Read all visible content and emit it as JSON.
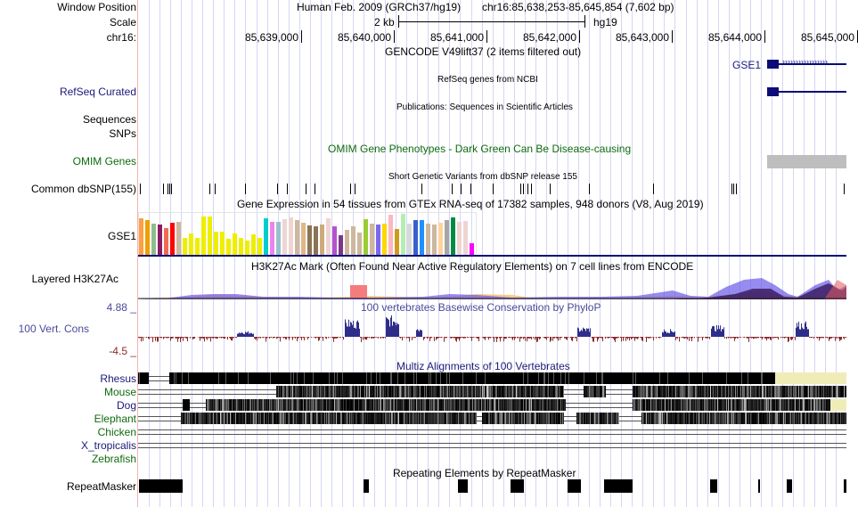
{
  "header": {
    "window_position_label": "Window Position",
    "assembly_text": "Human Feb. 2009 (GRCh37/hg19)",
    "position_text": "chr16:85,638,253-85,645,854 (7,602 bp)",
    "scale_label": "Scale",
    "scale_value": "2 kb",
    "scale_db": "hg19",
    "chrom_label": "chr16:",
    "ticks": [
      "85,639,000",
      "85,640,000",
      "85,641,000",
      "85,642,000",
      "85,643,000",
      "85,644,000",
      "85,645,000"
    ]
  },
  "tracks": {
    "gencode": {
      "title": "GENCODE V49lift37 (2 items filtered out)",
      "gene": "GSE1",
      "color": "#0c0c78"
    },
    "refseq": {
      "label": "RefSeq Curated",
      "title": "RefSeq genes from NCBI"
    },
    "publications": {
      "title": "Publications: Sequences in Scientific Articles"
    },
    "sequences": {
      "label": "Sequences"
    },
    "snps": {
      "label": "SNPs"
    },
    "omim": {
      "label": "OMIM Genes",
      "title": "OMIM Gene Phenotypes - Dark Green Can Be Disease-causing",
      "bar_color": "#bebebe"
    },
    "dbsnp": {
      "label": "Common dbSNP(155)",
      "title": "Short Genetic Variants from dbSNP release 155"
    },
    "gtex": {
      "label": "GSE1",
      "title": "Gene Expression in 54 tissues from GTEx RNA-seq of 17382 samples, 948 donors (V8, Aug 2019)",
      "bars": [
        {
          "color": "#ff9f40",
          "v": 0.88
        },
        {
          "color": "#eea000",
          "v": 0.84
        },
        {
          "color": "#8fbc8f",
          "v": 0.74
        },
        {
          "color": "#8b1c62",
          "v": 0.72
        },
        {
          "color": "#ee6a50",
          "v": 0.64
        },
        {
          "color": "#ff0000",
          "v": 0.76
        },
        {
          "color": "#cdb79e",
          "v": 0.78
        },
        {
          "color": "#eeee00",
          "v": 0.4
        },
        {
          "color": "#eeee00",
          "v": 0.52
        },
        {
          "color": "#eeee00",
          "v": 0.4
        },
        {
          "color": "#eeee00",
          "v": 0.92
        },
        {
          "color": "#eeee00",
          "v": 0.92
        },
        {
          "color": "#eeee00",
          "v": 0.56
        },
        {
          "color": "#eeee00",
          "v": 0.56
        },
        {
          "color": "#eeee00",
          "v": 0.38
        },
        {
          "color": "#eeee00",
          "v": 0.52
        },
        {
          "color": "#eeee00",
          "v": 0.4
        },
        {
          "color": "#eeee00",
          "v": 0.34
        },
        {
          "color": "#eeee00",
          "v": 0.48
        },
        {
          "color": "#eeee00",
          "v": 0.4
        },
        {
          "color": "#00cdcd",
          "v": 0.88
        },
        {
          "color": "#ee82ee",
          "v": 0.78
        },
        {
          "color": "#9ac0cd",
          "v": 0.78
        },
        {
          "color": "#eed5d2",
          "v": 0.86
        },
        {
          "color": "#eed5d2",
          "v": 0.9
        },
        {
          "color": "#cdb79e",
          "v": 0.82
        },
        {
          "color": "#deb887",
          "v": 0.76
        },
        {
          "color": "#8b7355",
          "v": 0.7
        },
        {
          "color": "#8b7355",
          "v": 0.68
        },
        {
          "color": "#cdaa7d",
          "v": 0.72
        },
        {
          "color": "#eed5d2",
          "v": 0.88
        },
        {
          "color": "#b452cd",
          "v": 0.68
        },
        {
          "color": "#7a378b",
          "v": 0.46
        },
        {
          "color": "#cdb79e",
          "v": 0.6
        },
        {
          "color": "#cdb79e",
          "v": 0.68
        },
        {
          "color": "#cdb79e",
          "v": 0.54
        },
        {
          "color": "#9acd32",
          "v": 0.86
        },
        {
          "color": "#cdb79e",
          "v": 0.74
        },
        {
          "color": "#7b68ee",
          "v": 0.72
        },
        {
          "color": "#ffd700",
          "v": 0.74
        },
        {
          "color": "#ffb6c1",
          "v": 0.96
        },
        {
          "color": "#cd9b1d",
          "v": 0.62
        },
        {
          "color": "#b4eeb4",
          "v": 0.98
        },
        {
          "color": "#d9d9d9",
          "v": 0.74
        },
        {
          "color": "#3a5fcd",
          "v": 0.82
        },
        {
          "color": "#1e90ff",
          "v": 0.82
        },
        {
          "color": "#cdb79e",
          "v": 0.74
        },
        {
          "color": "#cdb79e",
          "v": 0.72
        },
        {
          "color": "#ffd39b",
          "v": 0.76
        },
        {
          "color": "#a6a6a6",
          "v": 0.82
        },
        {
          "color": "#008b45",
          "v": 0.9
        },
        {
          "color": "#eed5d2",
          "v": 0.78
        },
        {
          "color": "#eed5d2",
          "v": 0.8
        },
        {
          "color": "#ff00ff",
          "v": 0.28
        }
      ]
    },
    "h3k27ac": {
      "label": "Layered H3K27Ac",
      "title": "H3K27Ac Mark (Often Found Near Active Regulatory Elements) on 7 cell lines from ENCODE"
    },
    "cons": {
      "label": "100 Vert. Cons",
      "max_label": "4.88 _",
      "min_label": "-4.5 _",
      "title": "100 vertebrates Basewise Conservation by PhyloP",
      "pos_color": "#2e2e8a",
      "neg_color": "#8b2a2a"
    },
    "multiz": {
      "title": "Multiz Alignments of 100 Vertebrates",
      "species": [
        {
          "name": "Rhesus",
          "color": "#1a1a7a"
        },
        {
          "name": "Mouse",
          "color": "#0e6b0e"
        },
        {
          "name": "Dog",
          "color": "#1a1a7a"
        },
        {
          "name": "Elephant",
          "color": "#0e6b0e"
        },
        {
          "name": "Chicken",
          "color": "#0e6b0e"
        },
        {
          "name": "X_tropicalis",
          "color": "#1a1a7a"
        },
        {
          "name": "Zebrafish",
          "color": "#0e6b0e"
        }
      ]
    },
    "repeatmasker": {
      "label": "RepeatMasker",
      "title": "Repeating Elements by RepeatMasker"
    }
  }
}
